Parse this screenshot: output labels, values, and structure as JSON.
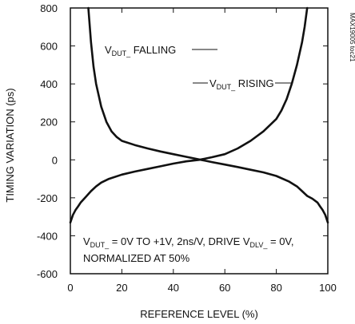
{
  "chart_data": {
    "type": "line",
    "title": "",
    "xlabel": "REFERENCE LEVEL (%)",
    "ylabel": "TIMING VARIATION (ps)",
    "xlim": [
      0,
      100
    ],
    "ylim": [
      -600,
      800
    ],
    "x_ticks": [
      "0",
      "20",
      "40",
      "60",
      "80",
      "100"
    ],
    "y_ticks": [
      "800",
      "600",
      "400",
      "200",
      "0",
      "-200",
      "-400",
      "-600"
    ],
    "grid": false,
    "part_number": "MAX19005 toc21",
    "series": [
      {
        "label_main": "V",
        "label_sub": "DUT_",
        "label_rest": " FALLING",
        "x": [
          7,
          8,
          9,
          10,
          12,
          14,
          16,
          18,
          20,
          25,
          30,
          35,
          40,
          45,
          50,
          55,
          60,
          65,
          70,
          75,
          80,
          85,
          88,
          90,
          92,
          94,
          96,
          97,
          98,
          99,
          100
        ],
        "y": [
          800,
          620,
          490,
          400,
          280,
          200,
          150,
          120,
          100,
          78,
          60,
          44,
          30,
          16,
          2,
          -12,
          -25,
          -38,
          -52,
          -66,
          -85,
          -115,
          -140,
          -165,
          -190,
          -205,
          -225,
          -245,
          -265,
          -290,
          -330
        ]
      },
      {
        "label_main": "V",
        "label_sub": "DUT_",
        "label_rest": " RISING",
        "x": [
          0,
          1,
          2,
          3,
          4,
          6,
          8,
          10,
          12,
          15,
          20,
          25,
          30,
          35,
          40,
          45,
          50,
          55,
          60,
          65,
          70,
          75,
          80,
          82,
          84,
          86,
          88,
          90,
          91,
          92
        ],
        "y": [
          -330,
          -290,
          -265,
          -245,
          -225,
          -195,
          -165,
          -140,
          -120,
          -100,
          -78,
          -62,
          -48,
          -34,
          -20,
          -8,
          0,
          14,
          30,
          60,
          100,
          150,
          215,
          260,
          320,
          400,
          500,
          620,
          700,
          800
        ]
      }
    ],
    "annotation": {
      "line1_a": "V",
      "line1_sub1": "DUT_",
      "line1_b": " = 0V TO +1V, 2ns/V, DRIVE V",
      "line1_sub2": "DLV_",
      "line1_c": " = 0V,",
      "line2": "NORMALIZED AT 50%"
    }
  }
}
